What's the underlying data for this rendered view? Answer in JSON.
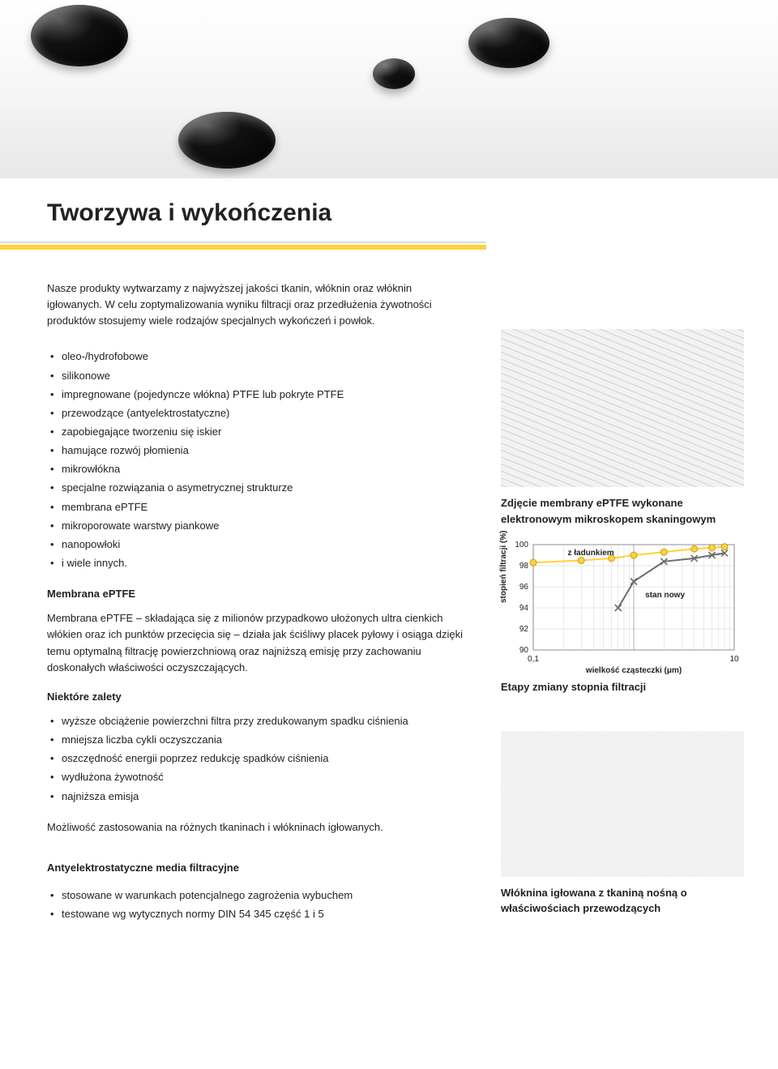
{
  "page_title": "Tworzywa i wykończenia",
  "intro": "Nasze produkty wytwarzamy z najwyższej jakości tkanin, włóknin oraz włóknin igłowanych. W celu zoptymalizowania wyniku filtracji oraz przedłużenia żywotności produktów stosujemy wiele rodzajów specjalnych wykończeń i powłok.",
  "finishes": [
    "oleo-/hydrofobowe",
    "silikonowe",
    "impregnowane (pojedyncze włókna) PTFE lub pokryte PTFE",
    "przewodzące (antyelektrostatyczne)",
    "zapobiegające tworzeniu się iskier",
    "hamujące rozwój płomienia",
    "mikrowłókna",
    "specjalne rozwiązania o asymetrycznej strukturze",
    "membrana ePTFE",
    "mikroporowate warstwy piankowe",
    "nanopowłoki",
    "i wiele innych."
  ],
  "membrane_title": "Membrana ePTFE",
  "membrane_text": "Membrana ePTFE – składająca się z milionów przypadkowo ułożonych ultra cienkich włókien oraz ich punktów przecięcia się – działa jak ściśliwy placek pyłowy i osiąga dzięki temu optymalną filtrację powierzchniową oraz najniższą emisję przy zachowaniu doskonałych właściwości oczyszczających.",
  "benefits_title": "Niektóre zalety",
  "benefits": [
    "wyższe obciążenie powierzchni filtra przy zredukowanym spadku ciśnienia",
    "mniejsza liczba cykli oczyszczania",
    "oszczędność energii poprzez redukcję spadków ciśnienia",
    "wydłużona żywotność",
    "najniższa emisja"
  ],
  "application_note": "Możliwość zastosowania na różnych tkaninach i włókninach igłowanych.",
  "antistatic_title": "Antyelektrostatyczne media filtracyjne",
  "antistatic": [
    "stosowane w warunkach potencjalnego zagrożenia wybuchem",
    "testowane wg wytycznych normy DIN 54 345 część 1 i 5"
  ],
  "sem_caption": "Zdjęcie membrany ePTFE wykonane elektronowym mikroskopem skaningowym",
  "chart": {
    "type": "line",
    "y_label": "stopień filtracji (%)",
    "x_label": "wielkość cząsteczki (μm)",
    "y_ticks": [
      90,
      92,
      94,
      96,
      98,
      100
    ],
    "ylim": [
      90,
      100
    ],
    "x_ticks_labels": [
      "0,1",
      "10"
    ],
    "x_scale": "log",
    "background_color": "#ffffff",
    "grid_color": "#c9c9c9",
    "series": [
      {
        "name": "z ładunkiem",
        "label": "z ładunkiem",
        "color": "#ffd13a",
        "marker": "circle",
        "points": [
          {
            "x": 0.1,
            "y": 98.3
          },
          {
            "x": 0.3,
            "y": 98.5
          },
          {
            "x": 0.6,
            "y": 98.7
          },
          {
            "x": 1.0,
            "y": 99.0
          },
          {
            "x": 2.0,
            "y": 99.3
          },
          {
            "x": 4.0,
            "y": 99.6
          },
          {
            "x": 6.0,
            "y": 99.7
          },
          {
            "x": 8.0,
            "y": 99.8
          }
        ]
      },
      {
        "name": "stan nowy",
        "label": "stan nowy",
        "color": "#6b6b6b",
        "marker": "x",
        "points": [
          {
            "x": 0.7,
            "y": 94.0
          },
          {
            "x": 1.0,
            "y": 96.5
          },
          {
            "x": 2.0,
            "y": 98.4
          },
          {
            "x": 4.0,
            "y": 98.7
          },
          {
            "x": 6.0,
            "y": 99.0
          },
          {
            "x": 8.0,
            "y": 99.2
          }
        ]
      }
    ]
  },
  "chart_caption": "Etapy zmiany stopnia filtracji",
  "swatch_caption": "Włóknina igłowana z tkaniną nośną o właściwościach przewodzących"
}
